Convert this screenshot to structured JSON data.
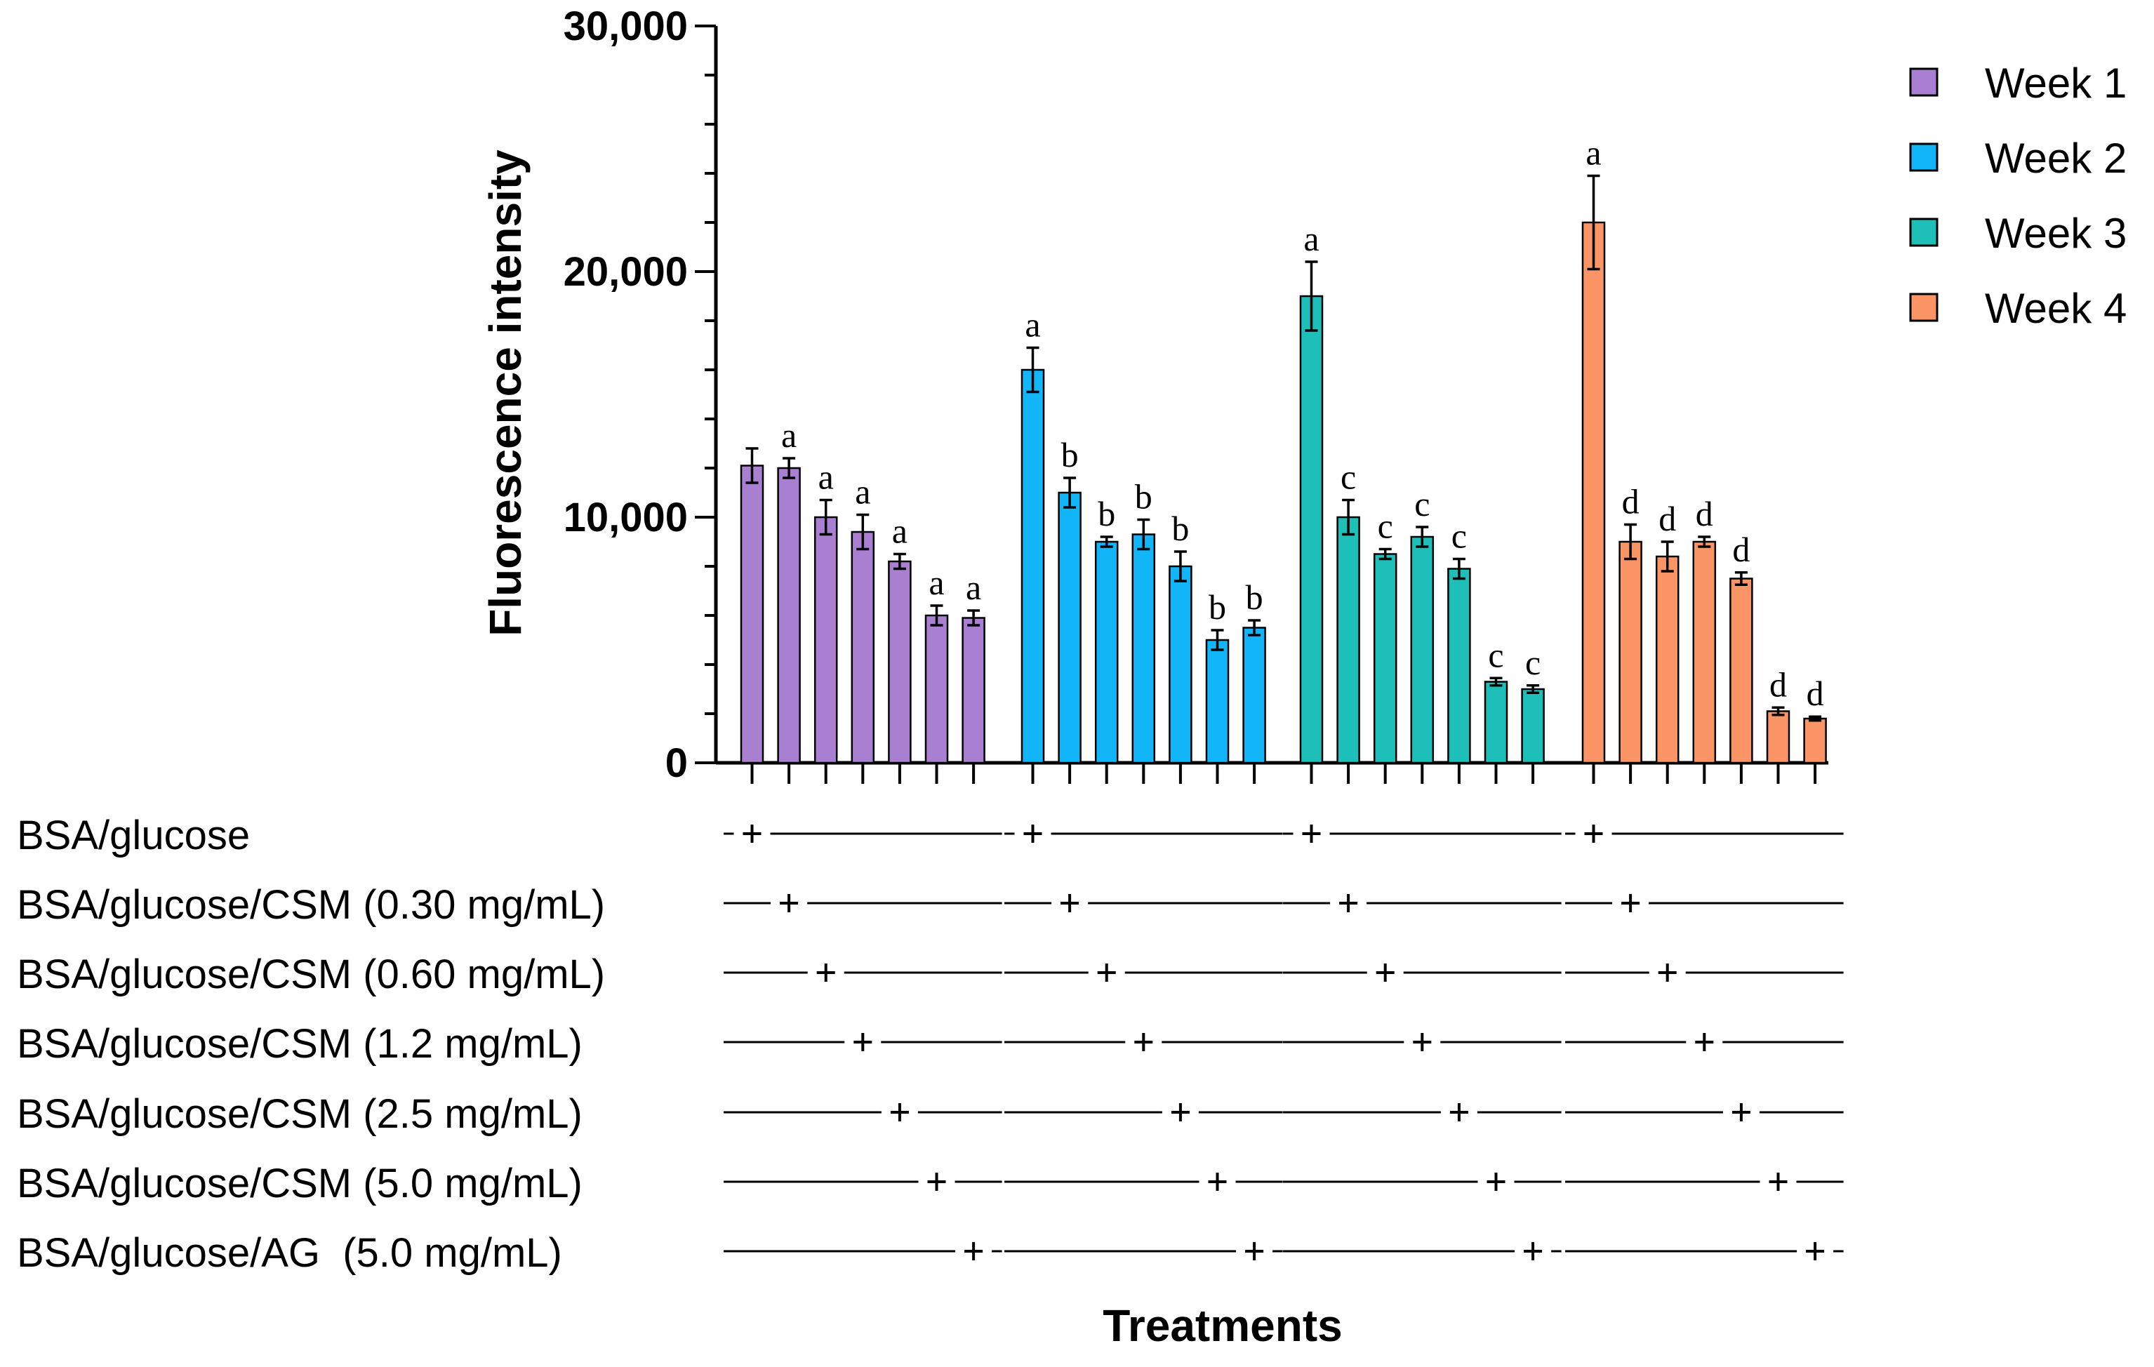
{
  "chart_data": {
    "type": "bar",
    "title": "",
    "xlabel": "Treatments",
    "ylabel": "Fluorescence intensity",
    "ylim": [
      0,
      30000
    ],
    "yticks": [
      0,
      10000,
      20000,
      30000
    ],
    "ytick_labels": [
      "0",
      "10,000",
      "20,000",
      "30,000"
    ],
    "legend_position": "top-right",
    "treatments": [
      "BSA/glucose",
      "BSA/glucose/CSM (0.30 mg/mL)",
      "BSA/glucose/CSM (0.60 mg/mL)",
      "BSA/glucose/CSM (1.2 mg/mL)",
      "BSA/glucose/CSM (2.5 mg/mL)",
      "BSA/glucose/CSM (5.0 mg/mL)",
      "BSA/glucose/AG  (5.0 mg/mL)"
    ],
    "series": [
      {
        "name": "Week 1",
        "color": "#a97fd1",
        "values": [
          12100,
          12000,
          10000,
          9400,
          8200,
          6000,
          5900
        ],
        "errors": [
          700,
          400,
          700,
          700,
          300,
          400,
          300
        ],
        "letters": [
          "",
          "a",
          "a",
          "a",
          "a",
          "a",
          "a"
        ]
      },
      {
        "name": "Week 2",
        "color": "#12b5f8",
        "values": [
          16000,
          11000,
          9000,
          9300,
          8000,
          5000,
          5500
        ],
        "errors": [
          900,
          600,
          200,
          600,
          600,
          400,
          300
        ],
        "letters": [
          "a",
          "b",
          "b",
          "b",
          "b",
          "b",
          "b"
        ]
      },
      {
        "name": "Week 3",
        "color": "#1ebfb8",
        "values": [
          19000,
          10000,
          8500,
          9200,
          7900,
          3300,
          3000
        ],
        "errors": [
          1400,
          700,
          200,
          400,
          400,
          150,
          150
        ],
        "letters": [
          "a",
          "c",
          "c",
          "c",
          "c",
          "c",
          "c"
        ]
      },
      {
        "name": "Week 4",
        "color": "#fb9566",
        "values": [
          22000,
          9000,
          8400,
          9000,
          7500,
          2100,
          1800
        ],
        "errors": [
          1900,
          700,
          600,
          200,
          250,
          150,
          80
        ],
        "letters": [
          "a",
          "d",
          "d",
          "d",
          "d",
          "d",
          "d"
        ]
      }
    ]
  }
}
